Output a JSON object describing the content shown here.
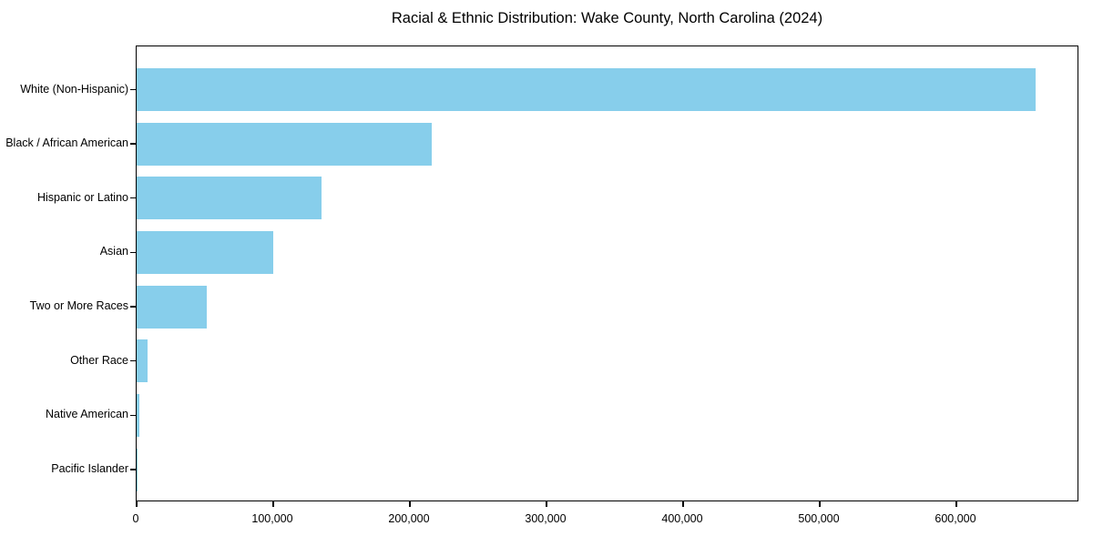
{
  "chart_data": {
    "type": "bar",
    "orientation": "horizontal",
    "title": "Racial & Ethnic Distribution: Wake County, North Carolina (2024)",
    "xlabel": "",
    "ylabel": "",
    "categories": [
      "White (Non-Hispanic)",
      "Black / African American",
      "Hispanic or Latino",
      "Asian",
      "Two or More Races",
      "Other Race",
      "Native American",
      "Pacific Islander"
    ],
    "values": [
      658000,
      216000,
      135000,
      100000,
      51000,
      8000,
      2000,
      500
    ],
    "bar_color": "#87CEEB",
    "xlim": [
      0,
      690000
    ],
    "x_ticks": [
      {
        "value": 0,
        "label": "0"
      },
      {
        "value": 100000,
        "label": "100,000"
      },
      {
        "value": 200000,
        "label": "200,000"
      },
      {
        "value": 300000,
        "label": "300,000"
      },
      {
        "value": 400000,
        "label": "400,000"
      },
      {
        "value": 500000,
        "label": "500,000"
      },
      {
        "value": 600000,
        "label": "600,000"
      }
    ],
    "grid": false,
    "legend": null
  }
}
